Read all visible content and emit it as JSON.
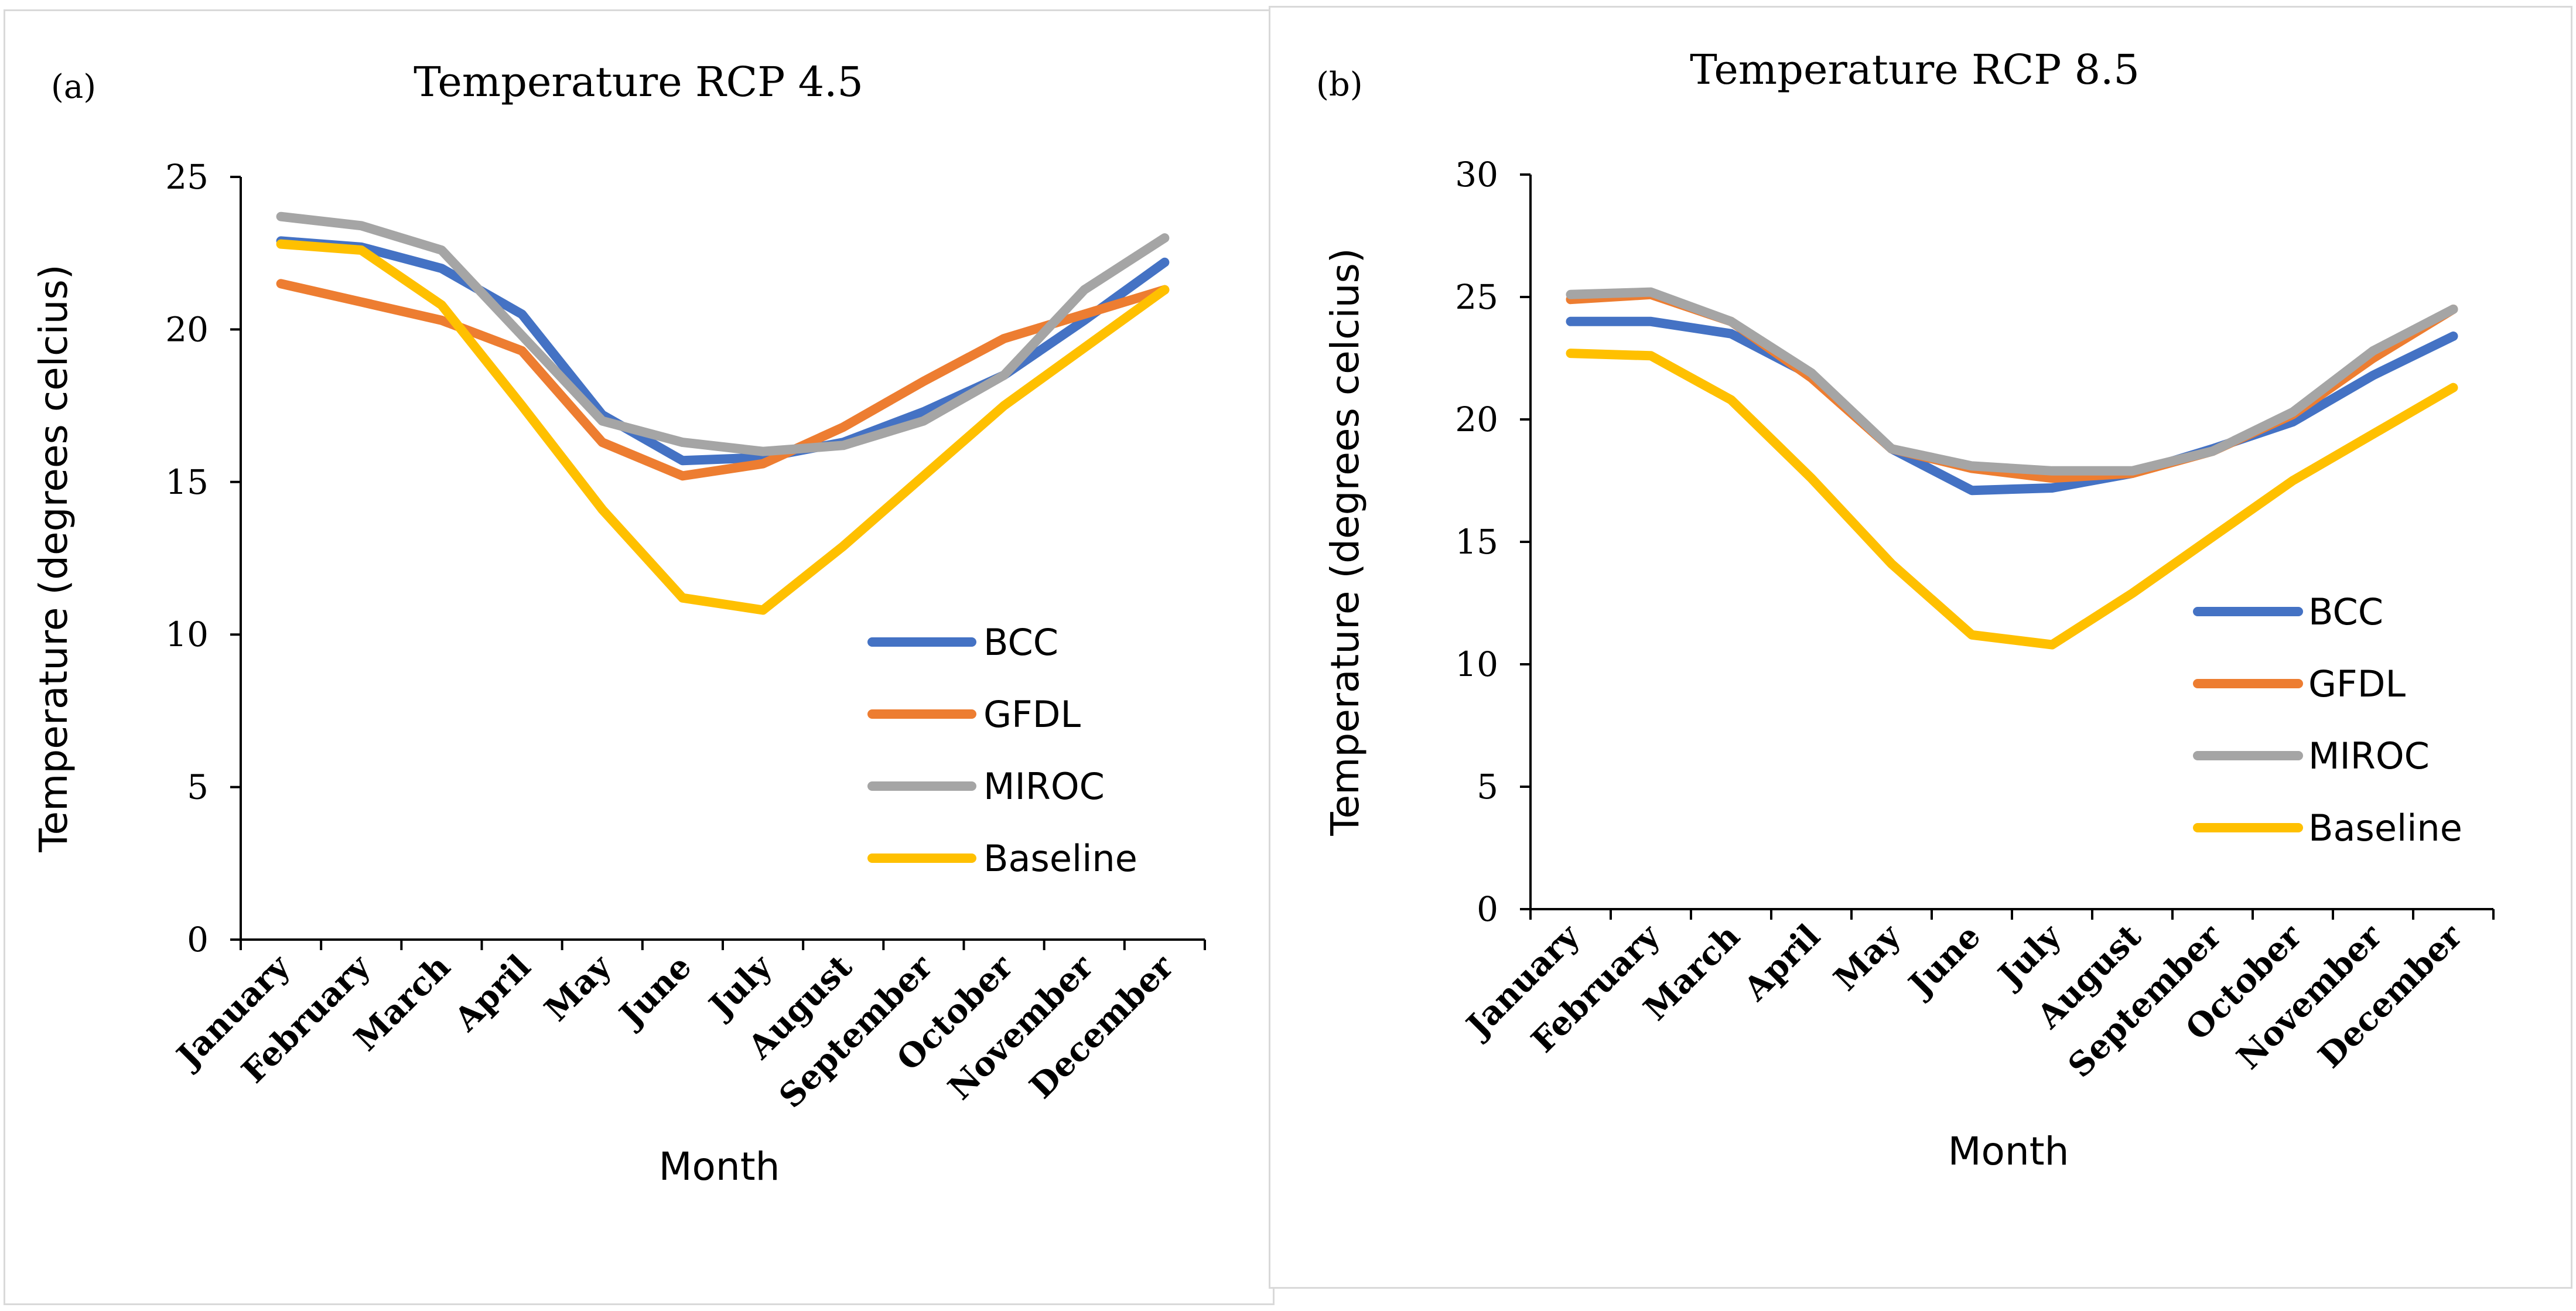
{
  "chart_data": [
    {
      "type": "line",
      "panel_label": "(a)",
      "title": "Temperature RCP 4.5",
      "xlabel": "Month",
      "ylabel": "Temperature (degrees celcius)",
      "ylim": [
        0,
        25
      ],
      "yticks": [
        "0",
        "5",
        "10",
        "15",
        "20",
        "25"
      ],
      "categories": [
        "January",
        "February",
        "March",
        "April",
        "May",
        "June",
        "July",
        "August",
        "September",
        "October",
        "November",
        "December"
      ],
      "series": [
        {
          "name": "BCC",
          "color": "#4472C4",
          "values": [
            22.9,
            22.7,
            22.0,
            20.5,
            17.2,
            15.7,
            15.8,
            16.3,
            17.3,
            18.5,
            20.3,
            22.2
          ]
        },
        {
          "name": "GFDL",
          "color": "#ED7D31",
          "values": [
            21.5,
            20.9,
            20.3,
            19.3,
            16.3,
            15.2,
            15.6,
            16.8,
            18.3,
            19.7,
            20.5,
            21.3
          ]
        },
        {
          "name": "MIROC",
          "color": "#A5A5A5",
          "values": [
            23.7,
            23.4,
            22.6,
            19.8,
            17.0,
            16.3,
            16.0,
            16.2,
            17.0,
            18.5,
            21.3,
            23.0
          ]
        },
        {
          "name": "Baseline",
          "color": "#FFC000",
          "values": [
            22.8,
            22.6,
            20.8,
            17.5,
            14.1,
            11.2,
            10.8,
            12.9,
            15.2,
            17.5,
            19.4,
            21.3
          ]
        }
      ]
    },
    {
      "type": "line",
      "panel_label": "(b)",
      "title": "Temperature RCP 8.5",
      "xlabel": "Month",
      "ylabel": "Temperature (degrees celcius)",
      "ylim": [
        0,
        30
      ],
      "yticks": [
        "0",
        "5",
        "10",
        "15",
        "20",
        "25",
        "30"
      ],
      "categories": [
        "January",
        "February",
        "March",
        "April",
        "May",
        "June",
        "July",
        "August",
        "September",
        "October",
        "November",
        "December"
      ],
      "series": [
        {
          "name": "BCC",
          "color": "#4472C4",
          "values": [
            24.0,
            24.0,
            23.5,
            21.8,
            18.8,
            17.1,
            17.2,
            17.8,
            18.8,
            19.9,
            21.8,
            23.4
          ]
        },
        {
          "name": "GFDL",
          "color": "#ED7D31",
          "values": [
            24.9,
            25.1,
            24.0,
            21.7,
            18.8,
            18.0,
            17.6,
            17.8,
            18.7,
            20.2,
            22.5,
            24.5
          ]
        },
        {
          "name": "MIROC",
          "color": "#A5A5A5",
          "values": [
            25.1,
            25.2,
            24.0,
            21.9,
            18.8,
            18.1,
            17.9,
            17.9,
            18.7,
            20.3,
            22.8,
            24.5
          ]
        },
        {
          "name": "Baseline",
          "color": "#FFC000",
          "values": [
            22.7,
            22.6,
            20.8,
            17.6,
            14.1,
            11.2,
            10.8,
            12.9,
            15.2,
            17.5,
            19.4,
            21.3
          ]
        }
      ]
    }
  ]
}
